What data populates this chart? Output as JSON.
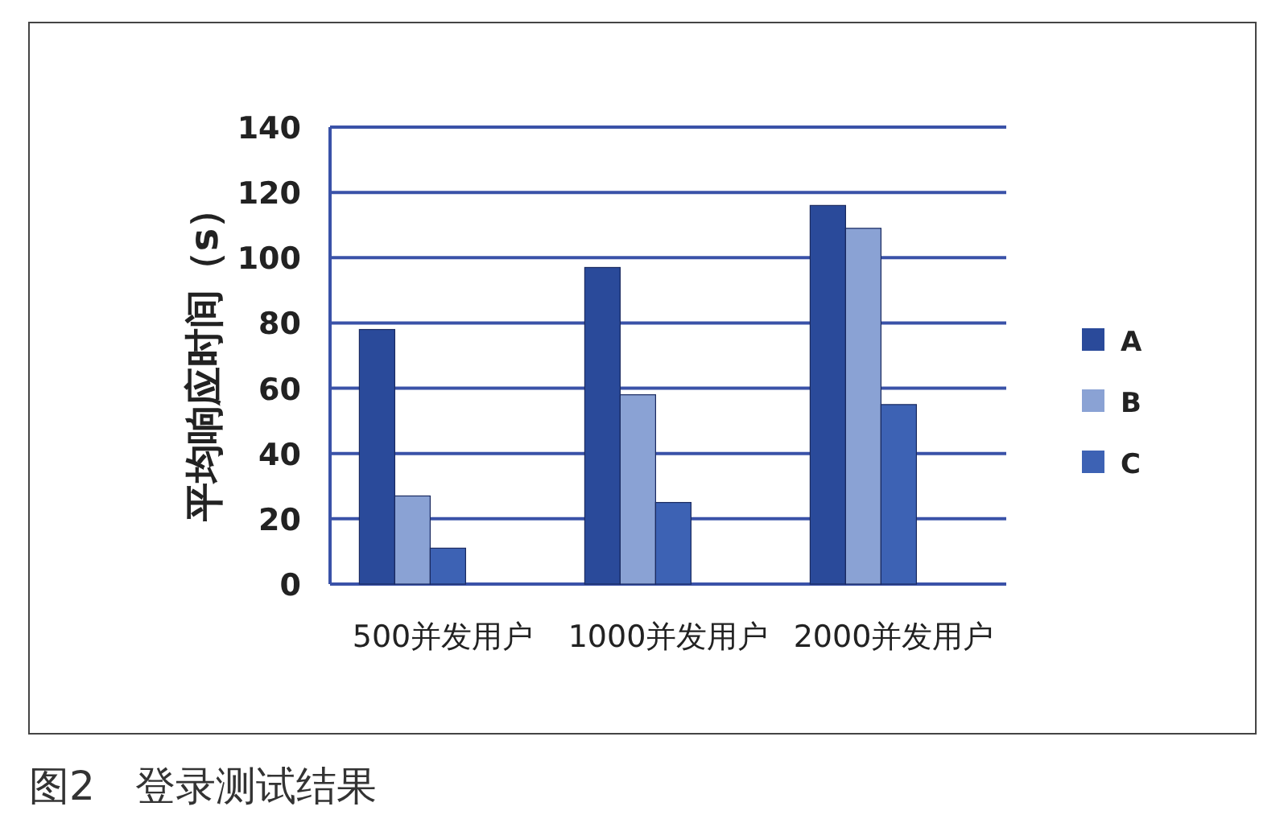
{
  "chart_data": {
    "type": "bar",
    "ylabel": "平均响应时间（s）",
    "categories": [
      "500并发用户",
      "1000并发用户",
      "2000并发用户"
    ],
    "series": [
      {
        "name": "A",
        "color": "#2a4a9a",
        "values": [
          78,
          97,
          116
        ]
      },
      {
        "name": "B",
        "color": "#8aa2d4",
        "values": [
          27,
          58,
          109
        ]
      },
      {
        "name": "C",
        "color": "#3d62b4",
        "values": [
          11,
          25,
          55
        ]
      }
    ],
    "ylim": [
      0,
      140
    ],
    "yticks": [
      0,
      20,
      40,
      60,
      80,
      100,
      120,
      140
    ],
    "grid": "y",
    "legend": "right",
    "annotations": [
      "图2　登录测试结果"
    ]
  }
}
